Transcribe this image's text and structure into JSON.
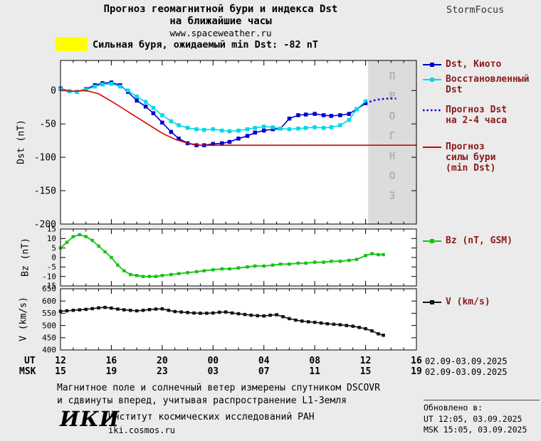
{
  "header": {
    "title_line1": "Прогноз геомагнитной бури и индекса Dst",
    "title_line2": "на ближайшие часы",
    "site": "www.spaceweather.ru",
    "brand": "StormFocus"
  },
  "warning": {
    "text": "Сильная буря, ожидаемый min Dst: -82 nT",
    "swatch_color": "#ffff00"
  },
  "colors": {
    "kyoto": "#0000cd",
    "restored": "#00d9e6",
    "forecast_dst": "#0000cd",
    "storm_forecast": "#d40000",
    "bz": "#16c316",
    "v": "#111111",
    "legend_text": "#8b1a1a",
    "forecast_band": "#dcdcdc",
    "forecast_band_text": "#b3b3b3",
    "background": "#ebebeb"
  },
  "legend": {
    "kyoto": "Dst, Киото",
    "restored_l1": "Восстановленный",
    "restored_l2": "Dst",
    "forecast_l1": "Прогноз Dst",
    "forecast_l2": "на 2-4 часа",
    "storm_l1": "Прогноз",
    "storm_l2": "силы бури",
    "storm_l3": "(min Dst)",
    "bz": "Bz (nT, GSM)",
    "v": "V (km/s)"
  },
  "axis": {
    "dst_label": "Dst (nT)",
    "bz_label": "Bz (nT)",
    "v_label": "V (km/s)",
    "ut_label": "UT",
    "msk_label": "MSK",
    "ut_date": "02.09-03.09.2025",
    "msk_date": "02.09-03.09.2025",
    "ut_ticks": [
      "12",
      "16",
      "20",
      "00",
      "04",
      "08",
      "12",
      "16"
    ],
    "msk_ticks": [
      "15",
      "19",
      "23",
      "03",
      "07",
      "11",
      "15",
      "19"
    ]
  },
  "forecast_band_label": "ПРОГНОЗ",
  "footnote": {
    "line1": "Магнитное поле и солнечный ветер измерены спутником DSCOVR",
    "line2": "и сдвинуты вперед, учитывая распространение L1-Земля"
  },
  "footer": {
    "logo": "ИКИ",
    "institute": "Институт космических исследований РАН",
    "site": "iki.cosmos.ru",
    "updated_label": "Обновлено в:",
    "updated_ut": "UT  12:05, 03.09.2025",
    "updated_msk": "MSK 15:05, 03.09.2025"
  },
  "chart_data": [
    {
      "id": "dst",
      "type": "line",
      "title": "Прогноз геомагнитной бури и индекса Dst на ближайшие часы",
      "xlabel": "UT, 02.09-03.09.2025",
      "ylabel": "Dst (nT)",
      "xlim": [
        12,
        40
      ],
      "ylim": [
        -200,
        45
      ],
      "yticks": [
        0,
        -50,
        -100,
        -150,
        -200
      ],
      "xticks": [
        12,
        16,
        20,
        24,
        28,
        32,
        36,
        40
      ],
      "grid": false,
      "legend_position": "right",
      "forecast_band": {
        "x0": 36.2,
        "x1": 40
      },
      "series": [
        {
          "key": "dst-kyoto",
          "name": "Dst, Киото",
          "color": "#0000cd",
          "marker": true,
          "marker_size": 5.5,
          "width": 1.6,
          "points": [
            [
              12,
              3
            ],
            [
              12.7,
              -1
            ],
            [
              13.3,
              -2
            ],
            [
              14,
              2
            ],
            [
              14.7,
              8
            ],
            [
              15.3,
              11
            ],
            [
              16,
              12
            ],
            [
              16.7,
              8
            ],
            [
              17.3,
              -2
            ],
            [
              18,
              -15
            ],
            [
              18.7,
              -24
            ],
            [
              19.3,
              -34
            ],
            [
              20,
              -48
            ],
            [
              20.7,
              -62
            ],
            [
              21.3,
              -72
            ],
            [
              22,
              -79
            ],
            [
              22.7,
              -82
            ],
            [
              23.3,
              -82
            ],
            [
              24,
              -80
            ],
            [
              24.7,
              -79
            ],
            [
              25.3,
              -77
            ],
            [
              26,
              -72
            ],
            [
              26.7,
              -68
            ],
            [
              27.3,
              -63
            ],
            [
              28,
              -60
            ],
            [
              28.7,
              -58
            ],
            [
              29.3,
              -57
            ],
            [
              30,
              -42
            ],
            [
              30.7,
              -37
            ],
            [
              31.3,
              -36
            ],
            [
              32,
              -35
            ],
            [
              32.7,
              -37
            ],
            [
              33.3,
              -38
            ],
            [
              34,
              -37
            ],
            [
              34.7,
              -35
            ],
            [
              35.3,
              -28
            ],
            [
              36,
              -19
            ]
          ]
        },
        {
          "key": "dst-restored",
          "name": "Восстановленный Dst",
          "color": "#00d9e6",
          "marker": true,
          "marker_size": 5.5,
          "width": 1.6,
          "points": [
            [
              12,
              2
            ],
            [
              12.7,
              -1
            ],
            [
              13.3,
              -2
            ],
            [
              14,
              1
            ],
            [
              14.7,
              6
            ],
            [
              15.3,
              9
            ],
            [
              16,
              10
            ],
            [
              16.7,
              6
            ],
            [
              17.3,
              0
            ],
            [
              18,
              -9
            ],
            [
              18.7,
              -17
            ],
            [
              19.3,
              -26
            ],
            [
              20,
              -37
            ],
            [
              20.7,
              -46
            ],
            [
              21.3,
              -52
            ],
            [
              22,
              -56
            ],
            [
              22.7,
              -58
            ],
            [
              23.3,
              -59
            ],
            [
              24,
              -58
            ],
            [
              24.7,
              -60
            ],
            [
              25.3,
              -61
            ],
            [
              26,
              -60
            ],
            [
              26.7,
              -58
            ],
            [
              27.3,
              -56
            ],
            [
              28,
              -54
            ],
            [
              28.7,
              -55
            ],
            [
              29.3,
              -57
            ],
            [
              30,
              -58
            ],
            [
              30.7,
              -57
            ],
            [
              31.3,
              -56
            ],
            [
              32,
              -55
            ],
            [
              32.7,
              -56
            ],
            [
              33.3,
              -55
            ],
            [
              34,
              -52
            ],
            [
              34.7,
              -44
            ],
            [
              35.3,
              -28
            ],
            [
              36,
              -16
            ]
          ]
        },
        {
          "key": "dst-forecast",
          "name": "Прогноз Dst на 2-4 часа",
          "color": "#0000cd",
          "marker": false,
          "width": 2.6,
          "dash": "2.5,3.5",
          "points": [
            [
              36,
              -19
            ],
            [
              36.6,
              -15
            ],
            [
              37.2,
              -13
            ],
            [
              37.8,
              -12
            ],
            [
              38.4,
              -12
            ]
          ]
        },
        {
          "key": "storm-min-forecast",
          "name": "Прогноз силы бури (min Dst)",
          "color": "#d40000",
          "marker": false,
          "width": 1.6,
          "points": [
            [
              12,
              0
            ],
            [
              13,
              -1
            ],
            [
              14,
              0
            ],
            [
              15,
              -5
            ],
            [
              16,
              -16
            ],
            [
              17,
              -28
            ],
            [
              18,
              -40
            ],
            [
              19,
              -52
            ],
            [
              20,
              -64
            ],
            [
              21,
              -73
            ],
            [
              22,
              -79
            ],
            [
              23,
              -82
            ],
            [
              40,
              -82
            ]
          ]
        }
      ]
    },
    {
      "id": "bz",
      "type": "line",
      "ylabel": "Bz (nT)",
      "xlim": [
        12,
        40
      ],
      "ylim": [
        -15,
        15
      ],
      "yticks": [
        15,
        10,
        5,
        0,
        -5,
        -10,
        -15
      ],
      "xticks": [
        12,
        16,
        20,
        24,
        28,
        32,
        36,
        40
      ],
      "grid": false,
      "series": [
        {
          "key": "bz",
          "name": "Bz (nT, GSM)",
          "color": "#16c316",
          "marker": true,
          "marker_size": 4.5,
          "width": 1.8,
          "points": [
            [
              12,
              5
            ],
            [
              12.5,
              8
            ],
            [
              13,
              11
            ],
            [
              13.5,
              12
            ],
            [
              14,
              11
            ],
            [
              14.5,
              9
            ],
            [
              15,
              6
            ],
            [
              15.5,
              3
            ],
            [
              16,
              0
            ],
            [
              16.5,
              -4
            ],
            [
              17,
              -7
            ],
            [
              17.5,
              -9
            ],
            [
              18,
              -9.5
            ],
            [
              18.5,
              -10
            ],
            [
              19,
              -10
            ],
            [
              19.5,
              -10
            ],
            [
              20,
              -9.5
            ],
            [
              20.7,
              -9
            ],
            [
              21.3,
              -8.5
            ],
            [
              22,
              -8
            ],
            [
              22.7,
              -7.5
            ],
            [
              23.3,
              -7
            ],
            [
              24,
              -6.5
            ],
            [
              24.7,
              -6
            ],
            [
              25.3,
              -6
            ],
            [
              26,
              -5.5
            ],
            [
              26.7,
              -5
            ],
            [
              27.3,
              -4.5
            ],
            [
              28,
              -4.5
            ],
            [
              28.7,
              -4
            ],
            [
              29.3,
              -3.5
            ],
            [
              30,
              -3.5
            ],
            [
              30.7,
              -3
            ],
            [
              31.3,
              -3
            ],
            [
              32,
              -2.5
            ],
            [
              32.7,
              -2.5
            ],
            [
              33.3,
              -2
            ],
            [
              34,
              -2
            ],
            [
              34.7,
              -1.5
            ],
            [
              35.3,
              -1
            ],
            [
              36,
              1
            ],
            [
              36.5,
              2
            ],
            [
              37,
              1.5
            ],
            [
              37.4,
              1.5
            ]
          ]
        }
      ]
    },
    {
      "id": "v",
      "type": "line",
      "ylabel": "V (km/s)",
      "xlim": [
        12,
        40
      ],
      "ylim": [
        400,
        650
      ],
      "yticks": [
        650,
        600,
        550,
        500,
        450,
        400
      ],
      "xticks": [
        12,
        16,
        20,
        24,
        28,
        32,
        36,
        40
      ],
      "grid": false,
      "series": [
        {
          "key": "v",
          "name": "V (km/s)",
          "color": "#111111",
          "marker": true,
          "marker_size": 4.5,
          "width": 1.6,
          "points": [
            [
              12,
              558
            ],
            [
              12.5,
              560
            ],
            [
              13,
              562
            ],
            [
              13.5,
              564
            ],
            [
              14,
              566
            ],
            [
              14.5,
              569
            ],
            [
              15,
              572
            ],
            [
              15.5,
              574
            ],
            [
              16,
              571
            ],
            [
              16.5,
              567
            ],
            [
              17,
              564
            ],
            [
              17.5,
              562
            ],
            [
              18,
              560
            ],
            [
              18.5,
              562
            ],
            [
              19,
              565
            ],
            [
              19.5,
              567
            ],
            [
              20,
              568
            ],
            [
              20.5,
              562
            ],
            [
              21,
              557
            ],
            [
              21.5,
              555
            ],
            [
              22,
              553
            ],
            [
              22.5,
              551
            ],
            [
              23,
              550
            ],
            [
              23.5,
              550
            ],
            [
              24,
              551
            ],
            [
              24.5,
              554
            ],
            [
              25,
              555
            ],
            [
              25.5,
              551
            ],
            [
              26,
              548
            ],
            [
              26.5,
              545
            ],
            [
              27,
              542
            ],
            [
              27.5,
              540
            ],
            [
              28,
              539
            ],
            [
              28.5,
              542
            ],
            [
              29,
              544
            ],
            [
              29.5,
              536
            ],
            [
              30,
              528
            ],
            [
              30.5,
              522
            ],
            [
              31,
              518
            ],
            [
              31.5,
              515
            ],
            [
              32,
              513
            ],
            [
              32.5,
              510
            ],
            [
              33,
              507
            ],
            [
              33.5,
              505
            ],
            [
              34,
              503
            ],
            [
              34.5,
              500
            ],
            [
              35,
              497
            ],
            [
              35.5,
              492
            ],
            [
              36,
              487
            ],
            [
              36.5,
              478
            ],
            [
              37,
              466
            ],
            [
              37.4,
              460
            ]
          ]
        }
      ]
    }
  ]
}
